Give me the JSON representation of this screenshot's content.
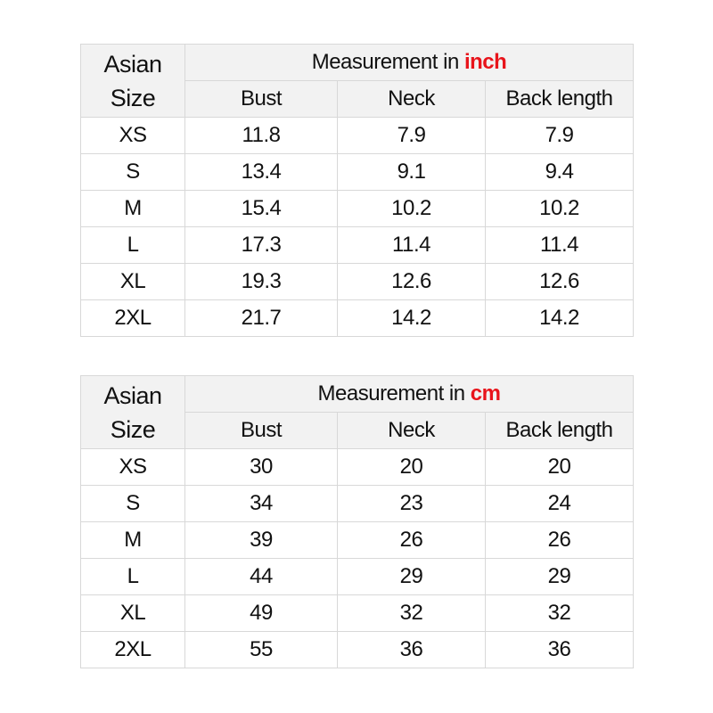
{
  "tables": [
    {
      "size_header": [
        "Asian",
        "Size"
      ],
      "measure_prefix": "Measurement in ",
      "unit": "inch",
      "columns": [
        "Bust",
        "Neck",
        "Back length"
      ],
      "rows": [
        [
          "XS",
          "11.8",
          "7.9",
          "7.9"
        ],
        [
          "S",
          "13.4",
          "9.1",
          "9.4"
        ],
        [
          "M",
          "15.4",
          "10.2",
          "10.2"
        ],
        [
          "L",
          "17.3",
          "11.4",
          "11.4"
        ],
        [
          "XL",
          "19.3",
          "12.6",
          "12.6"
        ],
        [
          "2XL",
          "21.7",
          "14.2",
          "14.2"
        ]
      ]
    },
    {
      "size_header": [
        "Asian",
        "Size"
      ],
      "measure_prefix": "Measurement in ",
      "unit": "cm",
      "columns": [
        "Bust",
        "Neck",
        "Back length"
      ],
      "rows": [
        [
          "XS",
          "30",
          "20",
          "20"
        ],
        [
          "S",
          "34",
          "23",
          "24"
        ],
        [
          "M",
          "39",
          "26",
          "26"
        ],
        [
          "L",
          "44",
          "29",
          "29"
        ],
        [
          "XL",
          "49",
          "32",
          "32"
        ],
        [
          "2XL",
          "55",
          "36",
          "36"
        ]
      ]
    }
  ],
  "colors": {
    "unit_highlight": "#e8141b",
    "header_bg": "#f2f2f2",
    "border": "#d8d8d8"
  }
}
